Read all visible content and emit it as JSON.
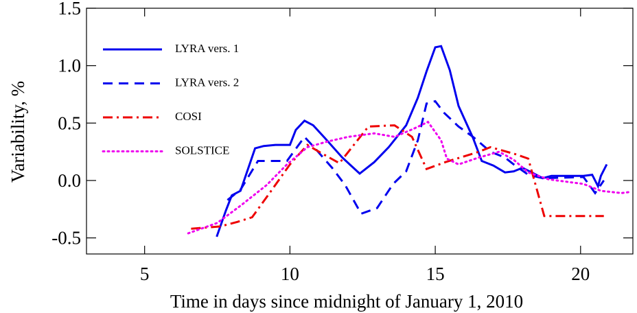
{
  "chart_data": {
    "type": "line",
    "xlabel": "Time in days since midnight of January 1, 2010",
    "ylabel": "Variability, %",
    "xlim": [
      3,
      21.8
    ],
    "ylim": [
      -0.64,
      1.5
    ],
    "xticks": [
      5,
      10,
      15,
      20
    ],
    "yticks": [
      -0.5,
      {
        "value": 0,
        "label": "0.0"
      },
      0.5,
      {
        "value": 1,
        "label": "1.0"
      },
      1.5
    ],
    "legend": "upper left",
    "series": [
      {
        "name": "LYRA vers. 1",
        "color": "#0000ee",
        "dash": "solid",
        "x": [
          7.48,
          7.8,
          8.0,
          8.3,
          8.8,
          9.1,
          9.5,
          10.0,
          10.2,
          10.5,
          10.8,
          11.2,
          11.8,
          12.4,
          12.9,
          13.4,
          14.0,
          14.4,
          14.7,
          15.0,
          15.2,
          15.5,
          15.8,
          16.3,
          16.6,
          17.0,
          17.4,
          17.7,
          18.0,
          18.4,
          18.7,
          19.0,
          19.6,
          20.1,
          20.4,
          20.6,
          20.7,
          20.9
        ],
        "values": [
          -0.49,
          -0.26,
          -0.13,
          -0.09,
          0.28,
          0.3,
          0.31,
          0.31,
          0.44,
          0.52,
          0.48,
          0.37,
          0.2,
          0.06,
          0.16,
          0.29,
          0.48,
          0.72,
          0.95,
          1.16,
          1.17,
          0.96,
          0.65,
          0.37,
          0.17,
          0.13,
          0.07,
          0.08,
          0.11,
          0.06,
          0.02,
          0.04,
          0.04,
          0.04,
          0.05,
          -0.05,
          0.04,
          0.14
        ]
      },
      {
        "name": "LYRA vers. 2",
        "color": "#0000ee",
        "dash": "dashed",
        "x": [
          7.85,
          8.3,
          8.9,
          9.9,
          10.5,
          10.9,
          11.45,
          11.9,
          12.45,
          13.0,
          13.55,
          14.0,
          14.4,
          14.7,
          15.0,
          15.3,
          15.8,
          16.3,
          16.9,
          17.4,
          17.7,
          18.2,
          18.7,
          20.1,
          20.5,
          20.8
        ],
        "values": [
          -0.17,
          -0.08,
          0.17,
          0.17,
          0.38,
          0.27,
          0.11,
          -0.04,
          -0.29,
          -0.24,
          -0.03,
          0.08,
          0.35,
          0.67,
          0.69,
          0.59,
          0.47,
          0.38,
          0.25,
          0.2,
          0.14,
          0.05,
          0.02,
          0.03,
          -0.11,
          0.0
        ]
      },
      {
        "name": "COSI",
        "color": "#ee0000",
        "dash": "dashdot",
        "x": [
          6.6,
          7.6,
          8.2,
          8.7,
          9.3,
          10.0,
          10.6,
          11.0,
          11.7,
          12.7,
          13.6,
          14.2,
          14.7,
          15.35,
          16.5,
          16.9,
          17.75,
          18.2,
          18.75,
          20.8
        ],
        "values": [
          -0.42,
          -0.4,
          -0.36,
          -0.32,
          -0.11,
          0.14,
          0.31,
          0.25,
          0.15,
          0.47,
          0.48,
          0.38,
          0.1,
          0.16,
          0.25,
          0.29,
          0.23,
          0.19,
          -0.31,
          -0.31
        ]
      },
      {
        "name": "SOLSTICE",
        "color": "#ee00ee",
        "dash": "dotted",
        "x": [
          6.5,
          7.5,
          8.3,
          9.2,
          9.9,
          10.6,
          11.3,
          12.0,
          12.9,
          13.6,
          14.25,
          14.75,
          15.2,
          15.4,
          15.8,
          16.5,
          17.2,
          17.7,
          18.2,
          18.9,
          20.1,
          20.7,
          21.4,
          21.7
        ],
        "values": [
          -0.46,
          -0.37,
          -0.22,
          -0.04,
          0.14,
          0.29,
          0.34,
          0.38,
          0.41,
          0.38,
          0.45,
          0.51,
          0.35,
          0.19,
          0.14,
          0.2,
          0.25,
          0.18,
          0.07,
          0.01,
          -0.03,
          -0.09,
          -0.11,
          -0.1
        ]
      }
    ]
  }
}
